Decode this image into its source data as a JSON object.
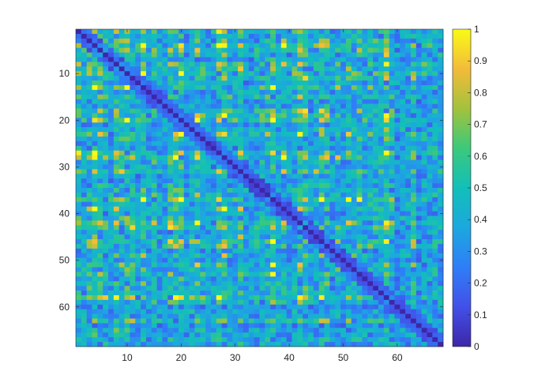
{
  "chart_data": {
    "type": "heatmap",
    "title": "",
    "xlabel": "",
    "ylabel": "",
    "rows": 68,
    "cols": 68,
    "symmetric": true,
    "diagonal_value": 0,
    "value_range": [
      0,
      1
    ],
    "colormap": "parula",
    "x_ticks": [
      "10",
      "20",
      "30",
      "40",
      "50",
      "60"
    ],
    "x_tick_values": [
      10,
      20,
      30,
      40,
      50,
      60
    ],
    "y_ticks": [
      "10",
      "20",
      "30",
      "40",
      "50",
      "60"
    ],
    "y_tick_values": [
      10,
      20,
      30,
      40,
      50,
      60
    ],
    "colorbar": {
      "ticks": [
        "0",
        "0.1",
        "0.2",
        "0.3",
        "0.4",
        "0.5",
        "0.6",
        "0.7",
        "0.8",
        "0.9",
        "1"
      ],
      "tick_values": [
        0,
        0.1,
        0.2,
        0.3,
        0.4,
        0.5,
        0.6,
        0.7,
        0.8,
        0.9,
        1
      ]
    },
    "colors": [
      "#3e26a8",
      "#4250e8",
      "#2f7ef7",
      "#1ca8de",
      "#12bfb9",
      "#3bc97b",
      "#a3c23c",
      "#f3bb3a",
      "#f9fb15"
    ]
  }
}
